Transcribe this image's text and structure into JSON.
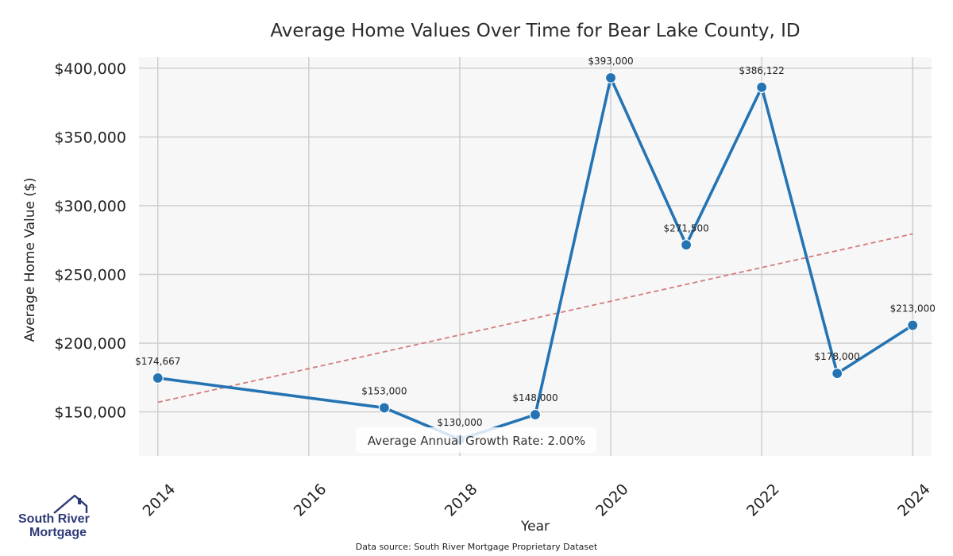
{
  "chart_data": {
    "type": "line",
    "title": "Average Home Values Over Time for Bear Lake County, ID",
    "xlabel": "Year",
    "ylabel": "Average Home Value ($)",
    "x": [
      2014,
      2017,
      2018,
      2019,
      2020,
      2021,
      2022,
      2023,
      2024
    ],
    "series": [
      {
        "values": [
          174667,
          153000,
          130000,
          148000,
          393000,
          271500,
          386122,
          178000,
          213000
        ],
        "labels": [
          "$174,667",
          "$153,000",
          "$130,000",
          "$148,000",
          "$393,000",
          "$271,500",
          "$386,122",
          "$178,000",
          "$213,000"
        ],
        "color": "#2474b4"
      }
    ],
    "trend": {
      "start": [
        2014,
        157000
      ],
      "end": [
        2024,
        279500
      ],
      "color": "#d47b7b",
      "style": "dashed"
    },
    "xticks": [
      2014,
      2016,
      2018,
      2020,
      2022,
      2024
    ],
    "xtick_labels": [
      "2014",
      "2016",
      "2018",
      "2020",
      "2022",
      "2024"
    ],
    "yticks": [
      150000,
      200000,
      250000,
      300000,
      350000,
      400000
    ],
    "ytick_labels": [
      "$150,000",
      "$200,000",
      "$250,000",
      "$300,000",
      "$350,000",
      "$400,000"
    ],
    "xlim": [
      2013.75,
      2024.25
    ],
    "ylim": [
      118000,
      408000
    ],
    "grid": true,
    "background": "#f7f7f7",
    "grid_color": "#cccccc",
    "annotation": "Average Annual Growth Rate: 2.00%"
  },
  "footer": {
    "source": "Data source: South River Mortgage Proprietary Dataset"
  },
  "logo": {
    "line1": "South River",
    "line2": "Mortgage",
    "color": "#2e3a78"
  }
}
